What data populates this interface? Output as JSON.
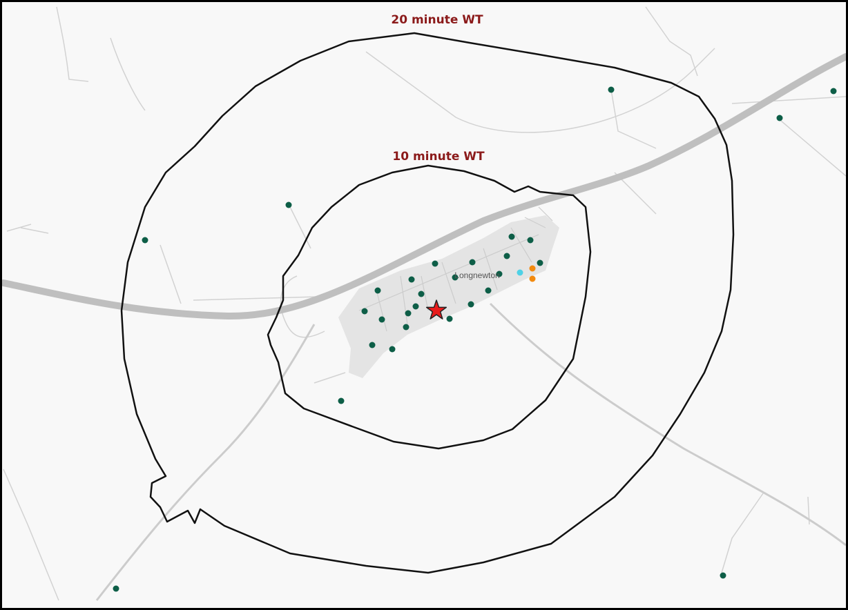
{
  "map": {
    "place_name": "Longnewton",
    "isochrones": [
      {
        "label": "20 minute WT"
      },
      {
        "label": "10 minute WT"
      }
    ],
    "markers": {
      "origin": {
        "shape": "star",
        "color": "#e81b1b"
      },
      "points": [
        {
          "category": "green",
          "color": "#0d5e47"
        },
        {
          "category": "orange",
          "color": "#f28a0f"
        },
        {
          "category": "cyan",
          "color": "#4fd1e6"
        }
      ]
    }
  },
  "colors": {
    "label_text": "#8b1a1a",
    "boundary": "#111111",
    "background": "#f8f8f8",
    "road": "#bfbfbf",
    "minor_road": "#d2d2d2",
    "settlement": "#e6e6e6"
  }
}
